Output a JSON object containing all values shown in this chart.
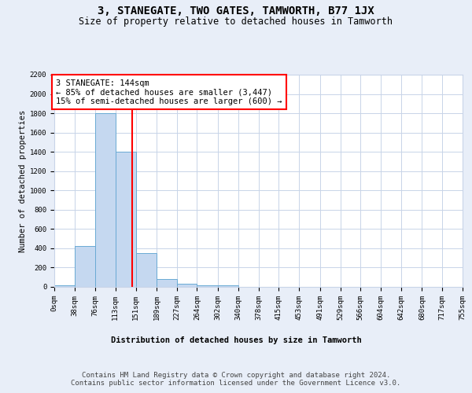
{
  "title": "3, STANEGATE, TWO GATES, TAMWORTH, B77 1JX",
  "subtitle": "Size of property relative to detached houses in Tamworth",
  "xlabel": "Distribution of detached houses by size in Tamworth",
  "ylabel": "Number of detached properties",
  "bin_edges": [
    0,
    38,
    76,
    113,
    151,
    189,
    227,
    264,
    302,
    340,
    378,
    415,
    453,
    491,
    529,
    566,
    604,
    642,
    680,
    717,
    755
  ],
  "bar_heights": [
    20,
    420,
    1800,
    1400,
    350,
    80,
    30,
    20,
    20,
    0,
    0,
    0,
    0,
    0,
    0,
    0,
    0,
    0,
    0,
    0
  ],
  "bar_color": "#c5d8f0",
  "bar_edge_color": "#6aaad4",
  "red_line_x": 144,
  "ylim": [
    0,
    2200
  ],
  "annotation_text": "3 STANEGATE: 144sqm\n← 85% of detached houses are smaller (3,447)\n15% of semi-detached houses are larger (600) →",
  "footer_text": "Contains HM Land Registry data © Crown copyright and database right 2024.\nContains public sector information licensed under the Government Licence v3.0.",
  "bg_color": "#e8eef8",
  "plot_bg_color": "#ffffff",
  "grid_color": "#c8d4e8",
  "title_fontsize": 10,
  "subtitle_fontsize": 8.5,
  "axis_label_fontsize": 7.5,
  "tick_fontsize": 6.5,
  "annotation_fontsize": 7.5,
  "footer_fontsize": 6.5,
  "ylabel_fontsize": 7.5
}
